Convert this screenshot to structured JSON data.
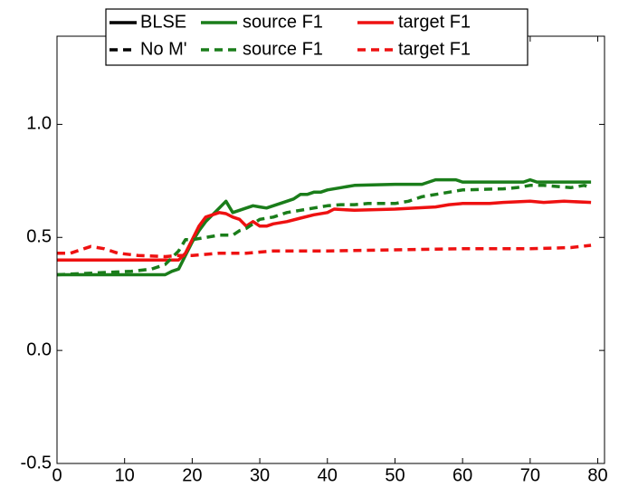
{
  "chart_data": {
    "type": "line",
    "xlim": [
      0,
      81
    ],
    "ylim": [
      -0.5,
      1.39
    ],
    "xticks": [
      0,
      10,
      20,
      30,
      40,
      50,
      60,
      70,
      80
    ],
    "yticks": [
      {
        "value": -0.5,
        "label": "-0.5"
      },
      {
        "value": 0,
        "label": "0.0"
      },
      {
        "value": 0.5,
        "label": "0.5"
      },
      {
        "value": 1,
        "label": "1.0"
      }
    ],
    "legend_groups": [
      {
        "name": "BLSE",
        "color": "#000000",
        "linestyle": "solid"
      },
      {
        "name": "No M'",
        "color": "#000000",
        "linestyle": "dashed"
      }
    ],
    "series": [
      {
        "name": "source F1",
        "color": "#1a7d1a",
        "linestyle": "solid",
        "x": [
          0,
          16,
          17,
          18,
          19,
          20,
          21,
          22,
          23,
          24,
          25,
          26,
          27,
          28,
          29,
          30,
          31,
          32,
          33,
          34,
          35,
          36,
          37,
          38,
          39,
          40,
          42,
          44,
          50,
          54,
          56,
          59,
          60,
          69,
          70,
          71,
          79
        ],
        "values": [
          0.335,
          0.335,
          0.35,
          0.36,
          0.42,
          0.48,
          0.53,
          0.57,
          0.6,
          0.63,
          0.66,
          0.61,
          0.62,
          0.63,
          0.64,
          0.635,
          0.63,
          0.64,
          0.65,
          0.66,
          0.67,
          0.69,
          0.69,
          0.7,
          0.7,
          0.71,
          0.72,
          0.73,
          0.735,
          0.735,
          0.755,
          0.755,
          0.745,
          0.745,
          0.755,
          0.745,
          0.745
        ]
      },
      {
        "name": "target F1",
        "color": "#ee1111",
        "linestyle": "solid",
        "x": [
          0,
          18,
          19,
          20,
          21,
          22,
          23,
          24,
          25,
          26,
          27,
          28,
          29,
          30,
          31,
          32,
          34,
          36,
          38,
          40,
          41,
          44,
          50,
          56,
          58,
          60,
          64,
          66,
          70,
          72,
          75,
          79
        ],
        "values": [
          0.4,
          0.4,
          0.43,
          0.49,
          0.55,
          0.59,
          0.6,
          0.61,
          0.605,
          0.59,
          0.58,
          0.55,
          0.57,
          0.55,
          0.55,
          0.56,
          0.57,
          0.585,
          0.6,
          0.61,
          0.625,
          0.62,
          0.625,
          0.635,
          0.645,
          0.65,
          0.65,
          0.655,
          0.66,
          0.655,
          0.66,
          0.655
        ]
      },
      {
        "name": "source F1",
        "color": "#1a7d1a",
        "linestyle": "dashed",
        "x": [
          0,
          11,
          14,
          16,
          17,
          18,
          19,
          20,
          22,
          24,
          26,
          27,
          28,
          29,
          30,
          32,
          34,
          36,
          38,
          40,
          42,
          44,
          46,
          50,
          52,
          54,
          56,
          58,
          60,
          66,
          68,
          70,
          72,
          76,
          78,
          79
        ],
        "values": [
          0.335,
          0.35,
          0.36,
          0.38,
          0.41,
          0.44,
          0.49,
          0.49,
          0.5,
          0.51,
          0.51,
          0.53,
          0.54,
          0.56,
          0.58,
          0.59,
          0.61,
          0.62,
          0.63,
          0.64,
          0.645,
          0.645,
          0.65,
          0.65,
          0.66,
          0.68,
          0.69,
          0.7,
          0.71,
          0.715,
          0.72,
          0.73,
          0.73,
          0.72,
          0.73,
          0.72
        ]
      },
      {
        "name": "target F1",
        "color": "#ee1111",
        "linestyle": "dashed",
        "x": [
          0,
          2,
          5,
          7,
          9,
          12,
          16,
          18,
          20,
          22,
          24,
          28,
          32,
          40,
          50,
          60,
          70,
          76,
          79
        ],
        "values": [
          0.43,
          0.43,
          0.46,
          0.45,
          0.43,
          0.42,
          0.415,
          0.42,
          0.42,
          0.425,
          0.43,
          0.43,
          0.44,
          0.44,
          0.445,
          0.45,
          0.45,
          0.455,
          0.465
        ]
      }
    ]
  }
}
